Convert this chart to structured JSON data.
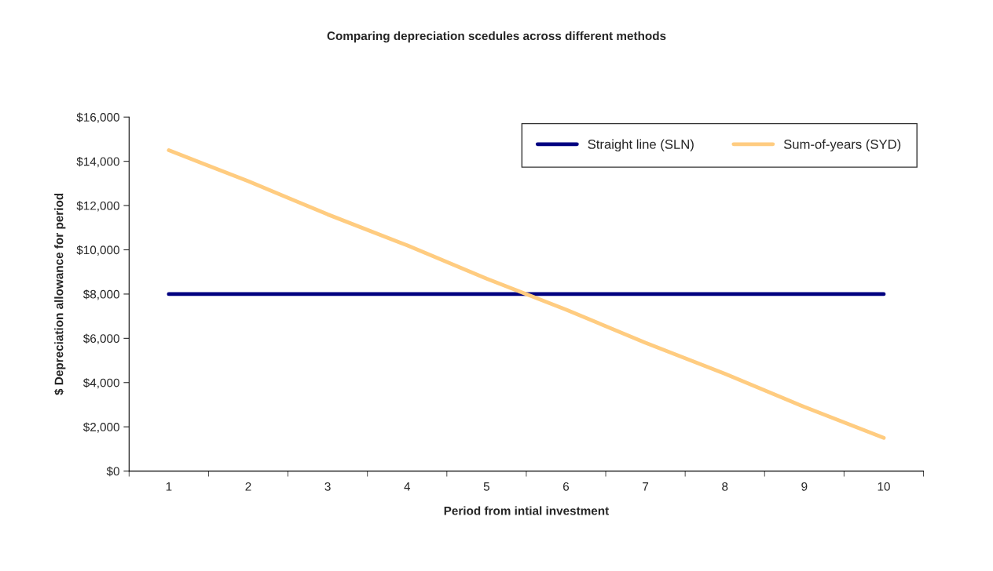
{
  "chart_data": {
    "type": "line",
    "title": "Comparing depreciation scedules across different methods",
    "xlabel": "Period from intial investment",
    "ylabel": "$ Depreciation allowance for period",
    "categories": [
      "1",
      "2",
      "3",
      "4",
      "5",
      "6",
      "7",
      "8",
      "9",
      "10"
    ],
    "series": [
      {
        "name": "Straight line (SLN)",
        "color": "#000080",
        "values": [
          8000,
          8000,
          8000,
          8000,
          8000,
          8000,
          8000,
          8000,
          8000,
          8000
        ]
      },
      {
        "name": "Sum-of-years (SYD)",
        "color": "#ffcc80",
        "values": [
          14500,
          13100,
          11600,
          10200,
          8700,
          7300,
          5800,
          4400,
          2900,
          1500
        ]
      }
    ],
    "ylim": [
      0,
      16000
    ],
    "yticks": [
      {
        "value": 0,
        "label": "$0"
      },
      {
        "value": 2000,
        "label": "$2,000"
      },
      {
        "value": 4000,
        "label": "$4,000"
      },
      {
        "value": 6000,
        "label": "$6,000"
      },
      {
        "value": 8000,
        "label": "$8,000"
      },
      {
        "value": 10000,
        "label": "$10,000"
      },
      {
        "value": 12000,
        "label": "$12,000"
      },
      {
        "value": 14000,
        "label": "$14,000"
      },
      {
        "value": 16000,
        "label": "$16,000"
      }
    ],
    "grid": false,
    "legend": "top right",
    "marker": "none",
    "line_style": "solid"
  }
}
